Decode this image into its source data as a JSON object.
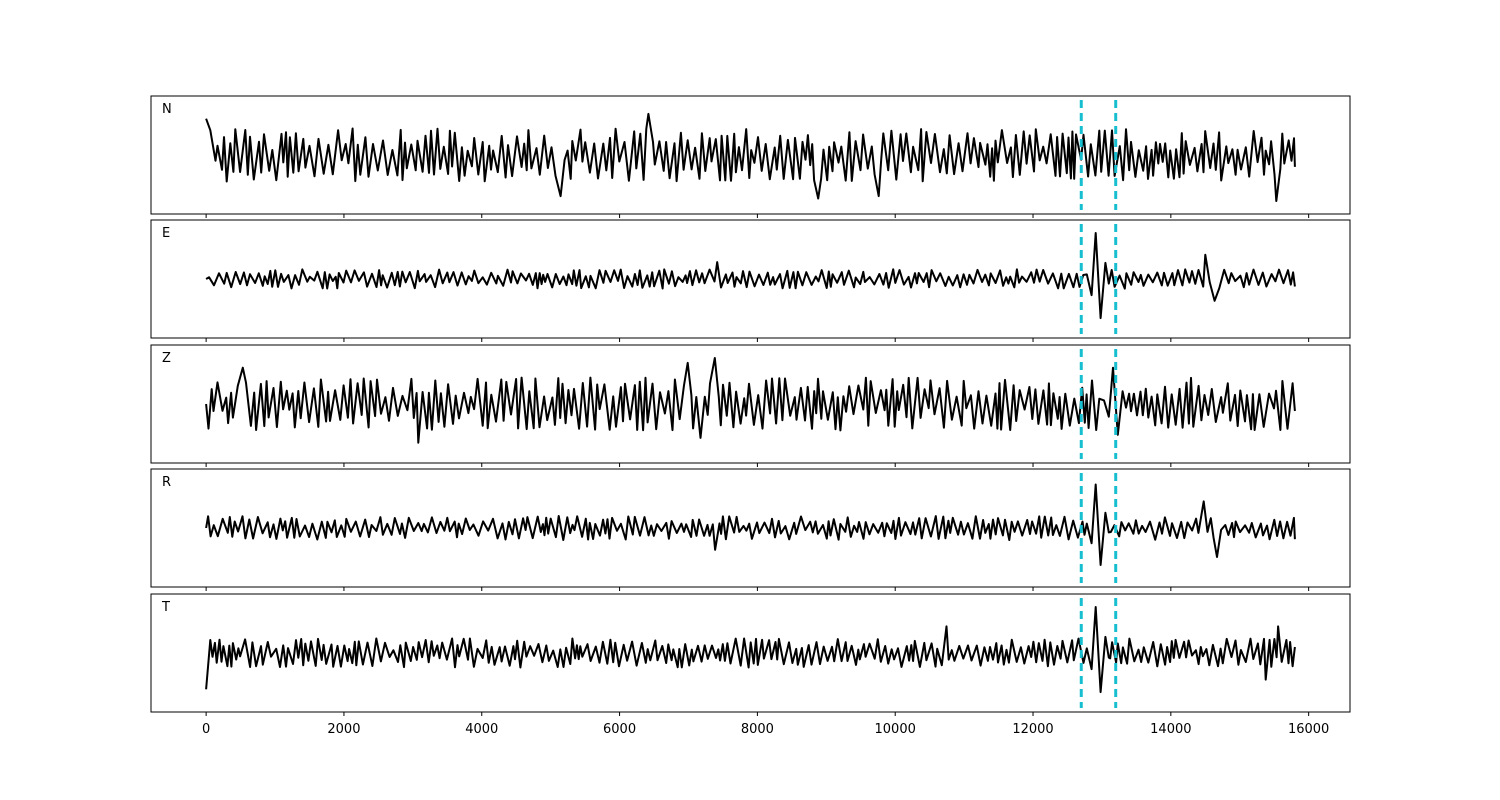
{
  "chart_data": {
    "type": "line",
    "xlim": [
      -800,
      16600
    ],
    "x_ticks": [
      0,
      2000,
      4000,
      6000,
      8000,
      10000,
      12000,
      14000,
      16000
    ],
    "x_tick_labels": [
      "0",
      "2000",
      "4000",
      "6000",
      "8000",
      "10000",
      "12000",
      "14000",
      "16000"
    ],
    "x_start": 0,
    "x_end": 15800,
    "vlines": [
      12700,
      13200
    ],
    "vline_color": "#17becf",
    "line_color": "#000000",
    "grid": false,
    "yaxis_ticks_visible": false,
    "panels": [
      {
        "label": "N",
        "sharex_ticks_labeled": false,
        "noise_amplitude": 0.55,
        "event": null,
        "features": [
          {
            "x": 0,
            "y": 0.75
          },
          {
            "x": 5150,
            "y": -0.85
          },
          {
            "x": 6450,
            "y": 0.85
          },
          {
            "x": 8900,
            "y": -0.9
          },
          {
            "x": 9750,
            "y": -0.85
          },
          {
            "x": 15550,
            "y": -0.95
          }
        ]
      },
      {
        "label": "E",
        "sharex_ticks_labeled": false,
        "noise_amplitude": 0.2,
        "event": {
          "x": 12930,
          "amplitude": 0.95
        },
        "features": [
          {
            "x": 7400,
            "y": 0.35
          },
          {
            "x": 14500,
            "y": 0.5
          },
          {
            "x": 14650,
            "y": -0.45
          }
        ]
      },
      {
        "label": "Z",
        "sharex_ticks_labeled": false,
        "noise_amplitude": 0.55,
        "event": {
          "x": 13180,
          "amplitude": 0.75
        },
        "features": [
          {
            "x": 500,
            "y": 0.75
          },
          {
            "x": 3100,
            "y": -0.8
          },
          {
            "x": 7000,
            "y": 0.85
          },
          {
            "x": 7400,
            "y": 0.95
          },
          {
            "x": 7200,
            "y": -0.7
          }
        ]
      },
      {
        "label": "R",
        "sharex_ticks_labeled": false,
        "noise_amplitude": 0.25,
        "event": {
          "x": 12930,
          "amplitude": 0.9
        },
        "features": [
          {
            "x": 14500,
            "y": 0.55
          },
          {
            "x": 14650,
            "y": -0.6
          },
          {
            "x": 7400,
            "y": -0.45
          }
        ]
      },
      {
        "label": "T",
        "sharex_ticks_labeled": true,
        "noise_amplitude": 0.3,
        "event": {
          "x": 12930,
          "amplitude": 0.95
        },
        "features": [
          {
            "x": 0,
            "y": -0.75
          },
          {
            "x": 10750,
            "y": 0.55
          },
          {
            "x": 15550,
            "y": 0.55
          },
          {
            "x": 15400,
            "y": -0.55
          }
        ]
      }
    ]
  }
}
